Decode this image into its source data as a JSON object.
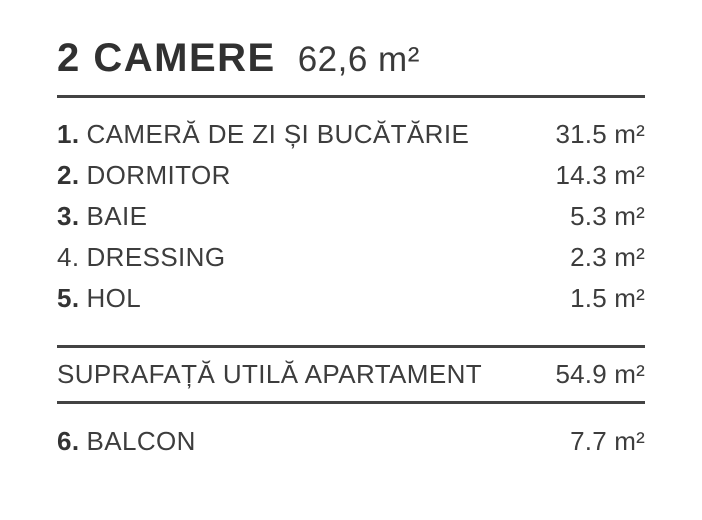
{
  "header": {
    "title": "2 CAMERE",
    "total_area": "62,6 m²"
  },
  "rooms": [
    {
      "number": "1.",
      "name": "CAMERĂ DE ZI ȘI BUCĂTĂRIE",
      "area": "31.5 m²"
    },
    {
      "number": "2.",
      "name": "DORMITOR",
      "area": "14.3 m²"
    },
    {
      "number": "3.",
      "name": "BAIE",
      "area": "5.3 m²"
    },
    {
      "number": "4.",
      "name": "DRESSING",
      "area": "2.3 m²"
    },
    {
      "number": "5.",
      "name": "HOL",
      "area": "1.5 m²"
    }
  ],
  "summary": {
    "label": "SUPRAFAȚĂ UTILĂ APARTAMENT",
    "area": "54.9 m²"
  },
  "balcony": {
    "number": "6.",
    "name": "BALCON",
    "area": "7.7 m²"
  },
  "colors": {
    "background": "#ffffff",
    "text": "#3d3d3d",
    "heading": "#313131",
    "divider": "#434343"
  }
}
